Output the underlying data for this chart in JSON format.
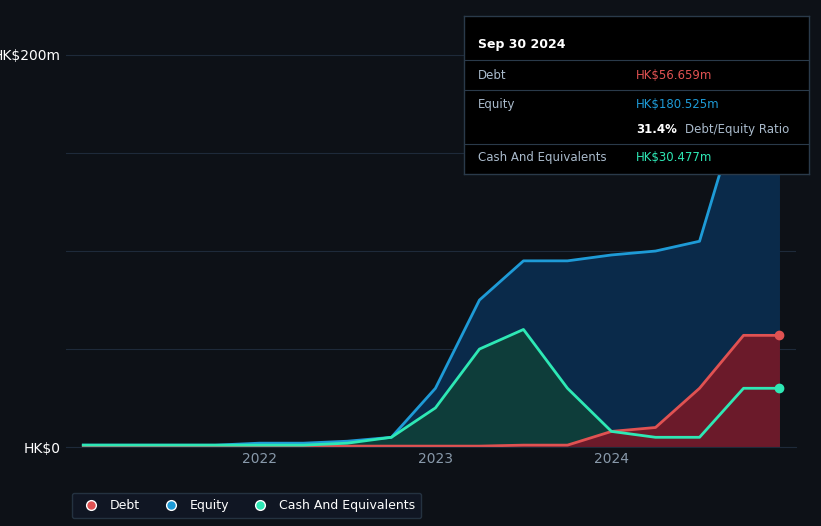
{
  "bg_color": "#0d1117",
  "plot_bg_color": "#0d1117",
  "grid_color": "#1e2a3a",
  "ylabel_text": "HK$200m",
  "y0_text": "HK$0",
  "ylim": [
    0,
    220
  ],
  "yticks": [
    0,
    200
  ],
  "debt_color": "#e05252",
  "equity_color": "#1e9bd7",
  "cash_color": "#2ee8b5",
  "debt_fill_color": "#6b1a2a",
  "equity_fill_color": "#0a2a4a",
  "cash_fill_color": "#0e3d3a",
  "legend_bg": "#111827",
  "legend_border": "#2a3a4a",
  "tooltip_bg": "#000000",
  "tooltip_border": "#2a3a4a",
  "tooltip_date": "Sep 30 2024",
  "tooltip_debt_label": "Debt",
  "tooltip_debt_value": "HK$56.659m",
  "tooltip_equity_label": "Equity",
  "tooltip_equity_value": "HK$180.525m",
  "tooltip_ratio": "31.4%",
  "tooltip_ratio_label": "Debt/Equity Ratio",
  "tooltip_cash_label": "Cash And Equivalents",
  "tooltip_cash_value": "HK$30.477m",
  "x_dates": [
    2021.0,
    2021.25,
    2021.5,
    2021.75,
    2022.0,
    2022.25,
    2022.5,
    2022.75,
    2023.0,
    2023.25,
    2023.5,
    2023.75,
    2024.0,
    2024.25,
    2024.5,
    2024.75,
    2024.95
  ],
  "equity_values": [
    1,
    1,
    1,
    1,
    2,
    2,
    3,
    5,
    30,
    75,
    95,
    95,
    98,
    100,
    105,
    180,
    181
  ],
  "debt_values": [
    0.5,
    0.5,
    0.5,
    0.5,
    0.5,
    0.5,
    0.5,
    0.5,
    0.5,
    0.5,
    1,
    1,
    8,
    10,
    30,
    57,
    57
  ],
  "cash_values": [
    1,
    1,
    1,
    1,
    1,
    1,
    2,
    5,
    20,
    50,
    60,
    30,
    8,
    5,
    5,
    30,
    30
  ],
  "x_tick_positions": [
    2022,
    2023,
    2024
  ],
  "x_tick_labels": [
    "2022",
    "2023",
    "2024"
  ],
  "grid_y_values": [
    0,
    50,
    100,
    150,
    200
  ]
}
